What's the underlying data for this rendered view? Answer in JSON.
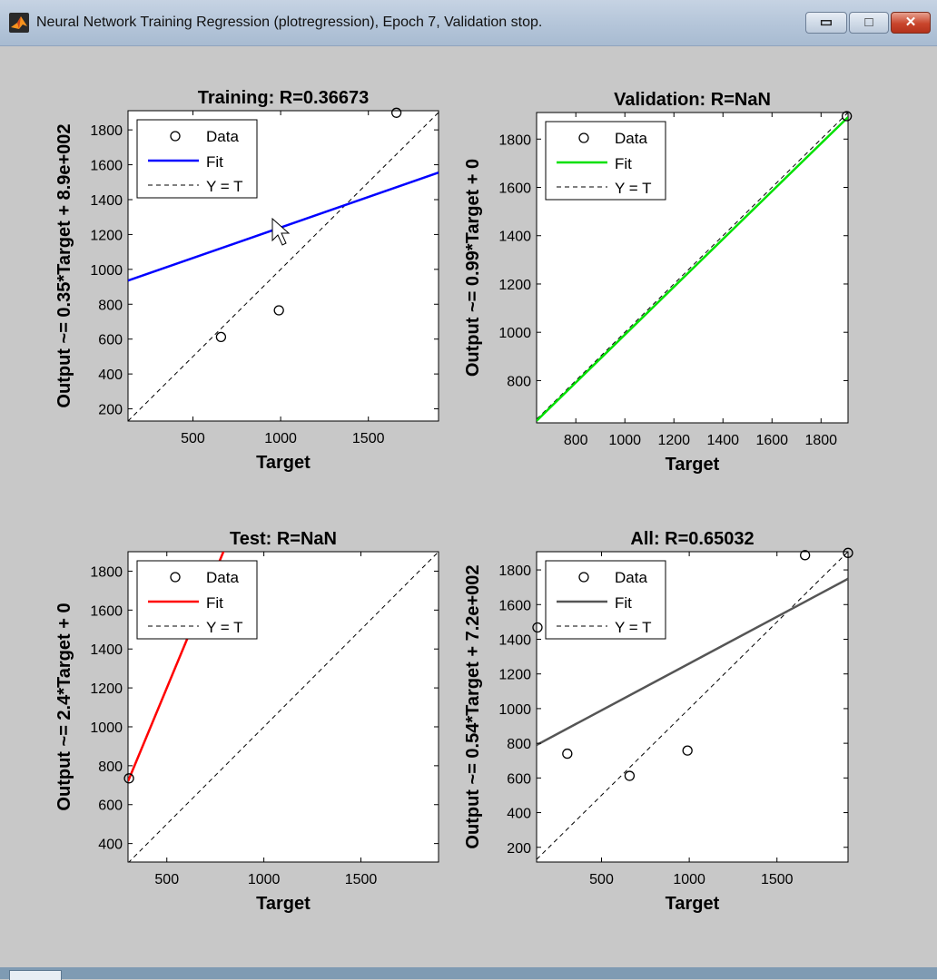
{
  "window": {
    "title": "Neural Network Training Regression (plotregression), Epoch 7, Validation stop.",
    "minimize_symbol": "▭",
    "maximize_symbol": "□",
    "close_symbol": "✕"
  },
  "legend_labels": [
    "Data",
    "Fit",
    "Y = T"
  ],
  "chart_data": [
    {
      "type": "scatter",
      "title": "Training: R=0.36673",
      "xlabel": "Target",
      "ylabel": "Output ~= 0.35*Target + 8.9e+002",
      "xlim": [
        130,
        1900
      ],
      "ylim": [
        130,
        1910
      ],
      "xticks": [
        500,
        1000,
        1500
      ],
      "yticks": [
        200,
        400,
        600,
        800,
        1000,
        1200,
        1400,
        1600,
        1800
      ],
      "points": [
        [
          660,
          612
        ],
        [
          990,
          765
        ],
        [
          1660,
          1898
        ]
      ],
      "fit": {
        "slope": 0.35,
        "intercept": 890,
        "color": "#0000ff"
      },
      "legend": "top-left"
    },
    {
      "type": "scatter",
      "title": "Validation: R=NaN",
      "xlabel": "Target",
      "ylabel": "Output ~= 0.99*Target + 0",
      "xlim": [
        640,
        1910
      ],
      "ylim": [
        625,
        1910
      ],
      "xticks": [
        800,
        1000,
        1200,
        1400,
        1600,
        1800
      ],
      "yticks": [
        800,
        1000,
        1200,
        1400,
        1600,
        1800
      ],
      "points": [
        [
          1905,
          1895
        ]
      ],
      "fit": {
        "slope": 0.99,
        "intercept": 0,
        "color": "#00e000"
      },
      "legend": "top-left"
    },
    {
      "type": "scatter",
      "title": "Test: R=NaN",
      "xlabel": "Target",
      "ylabel": "Output ~= 2.4*Target + 0",
      "xlim": [
        300,
        1900
      ],
      "ylim": [
        305,
        1900
      ],
      "xticks": [
        500,
        1000,
        1500
      ],
      "yticks": [
        400,
        600,
        800,
        1000,
        1200,
        1400,
        1600,
        1800
      ],
      "points": [
        [
          305,
          735
        ]
      ],
      "fit": {
        "slope": 2.4,
        "intercept": 0,
        "color": "#ff0000"
      },
      "legend": "top-left"
    },
    {
      "type": "scatter",
      "title": "All: R=0.65032",
      "xlabel": "Target",
      "ylabel": "Output ~= 0.54*Target + 7.2e+002",
      "xlim": [
        130,
        1905
      ],
      "ylim": [
        115,
        1905
      ],
      "xticks": [
        500,
        1000,
        1500
      ],
      "yticks": [
        200,
        400,
        600,
        800,
        1000,
        1200,
        1400,
        1600,
        1800
      ],
      "points": [
        [
          135,
          1468
        ],
        [
          305,
          740
        ],
        [
          660,
          612
        ],
        [
          990,
          758
        ],
        [
          1660,
          1885
        ],
        [
          1905,
          1898
        ]
      ],
      "fit": {
        "slope": 0.54,
        "intercept": 720,
        "color": "#555555"
      },
      "legend": "top-left"
    }
  ]
}
